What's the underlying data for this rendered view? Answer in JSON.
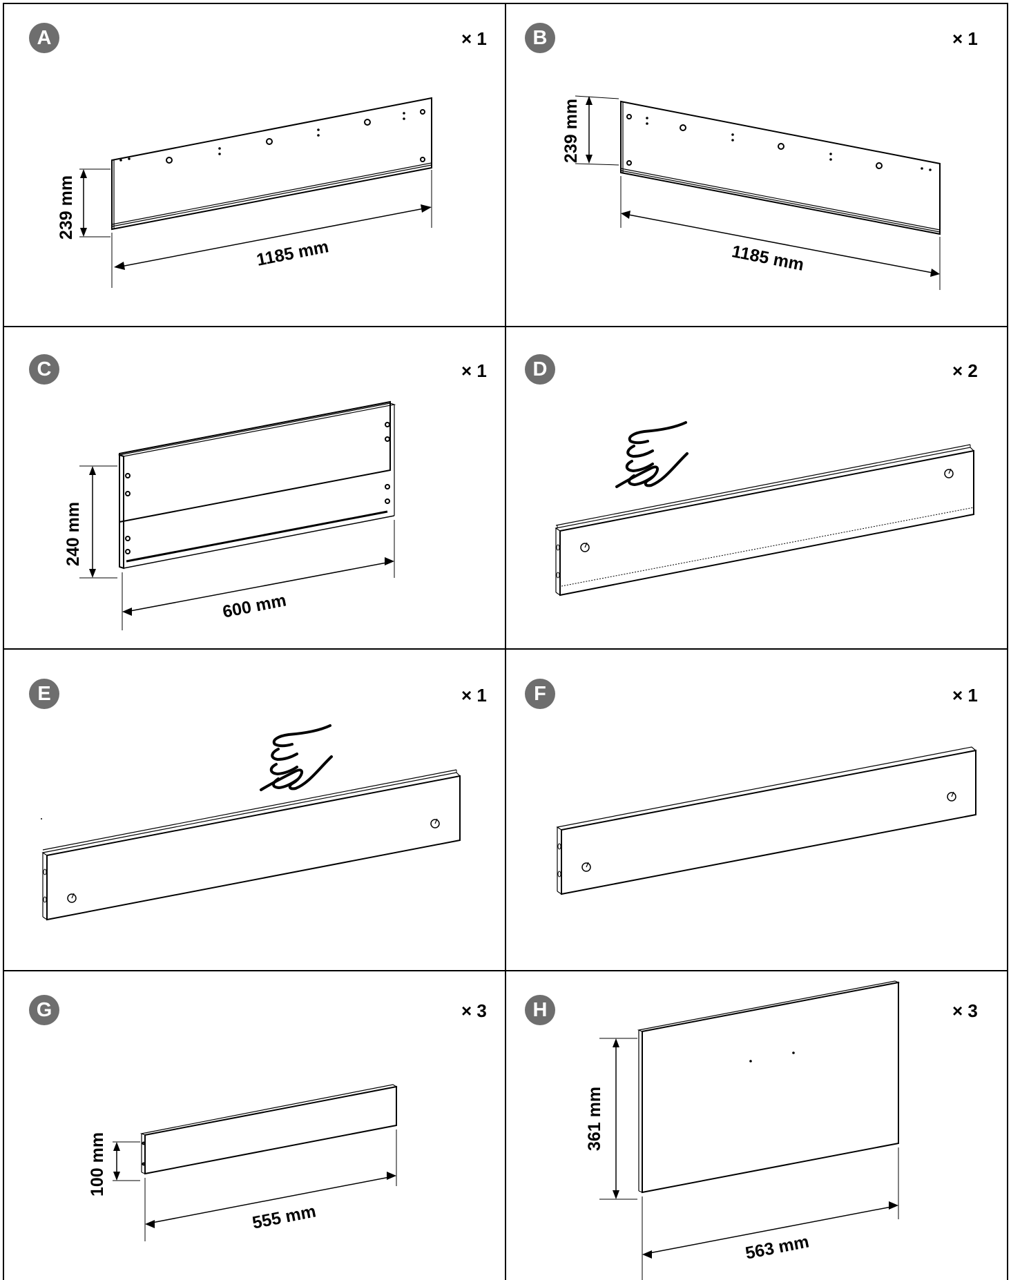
{
  "parts": [
    {
      "letter": "A",
      "quantity": "× 1",
      "dims": [
        "239 mm",
        "1185 mm"
      ]
    },
    {
      "letter": "B",
      "quantity": "× 1",
      "dims": [
        "239 mm",
        "1185 mm"
      ]
    },
    {
      "letter": "C",
      "quantity": "× 1",
      "dims": [
        "240 mm",
        "600 mm"
      ]
    },
    {
      "letter": "D",
      "quantity": "× 2",
      "dims": [],
      "icon": "hand-touch-icon"
    },
    {
      "letter": "E",
      "quantity": "× 1",
      "dims": [],
      "icon": "hand-touch-icon"
    },
    {
      "letter": "F",
      "quantity": "× 1",
      "dims": []
    },
    {
      "letter": "G",
      "quantity": "× 3",
      "dims": [
        "100 mm",
        "555 mm"
      ]
    },
    {
      "letter": "H",
      "quantity": "× 3",
      "dims": [
        "361 mm",
        "563 mm"
      ]
    }
  ],
  "colors": {
    "badge": "#6e6e6e",
    "line": "#000000"
  }
}
